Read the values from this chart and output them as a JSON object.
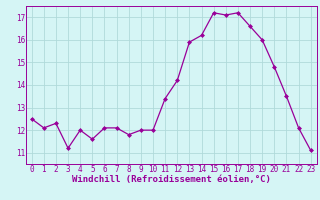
{
  "x": [
    0,
    1,
    2,
    3,
    4,
    5,
    6,
    7,
    8,
    9,
    10,
    11,
    12,
    13,
    14,
    15,
    16,
    17,
    18,
    19,
    20,
    21,
    22,
    23
  ],
  "y": [
    12.5,
    12.1,
    12.3,
    11.2,
    12.0,
    11.6,
    12.1,
    12.1,
    11.8,
    12.0,
    12.0,
    13.4,
    14.2,
    15.9,
    16.2,
    17.2,
    17.1,
    17.2,
    16.6,
    16.0,
    14.8,
    13.5,
    12.1,
    11.1
  ],
  "line_color": "#990099",
  "marker": "D",
  "marker_size": 2.0,
  "bg_color": "#d5f5f5",
  "grid_color": "#b0dada",
  "xlabel": "Windchill (Refroidissement éolien,°C)",
  "xlabel_color": "#990099",
  "xlim": [
    -0.5,
    23.5
  ],
  "ylim": [
    10.5,
    17.5
  ],
  "yticks": [
    11,
    12,
    13,
    14,
    15,
    16,
    17
  ],
  "xticks": [
    0,
    1,
    2,
    3,
    4,
    5,
    6,
    7,
    8,
    9,
    10,
    11,
    12,
    13,
    14,
    15,
    16,
    17,
    18,
    19,
    20,
    21,
    22,
    23
  ],
  "tick_fontsize": 5.5,
  "xlabel_fontsize": 6.5,
  "axis_color": "#990099",
  "spine_color": "#990099",
  "linewidth": 0.9
}
